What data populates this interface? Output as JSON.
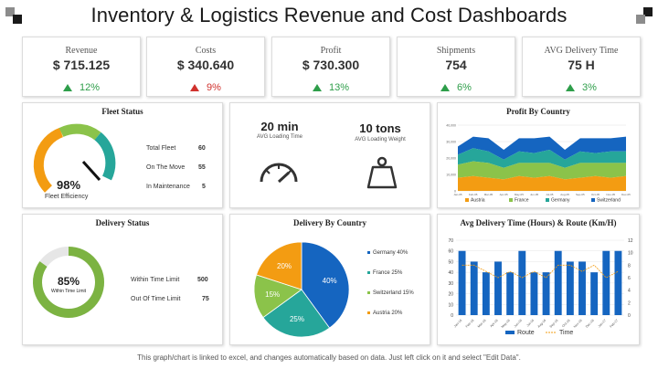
{
  "title": "Inventory & Logistics Revenue and Cost Dashboards",
  "kpis": [
    {
      "label": "Revenue",
      "value": "$ 715.125",
      "delta": "12%",
      "trend": "up"
    },
    {
      "label": "Costs",
      "value": "$ 340.640",
      "delta": "9%",
      "trend": "down"
    },
    {
      "label": "Profit",
      "value": "$ 730.300",
      "delta": "13%",
      "trend": "up"
    },
    {
      "label": "Shipments",
      "value": "754",
      "delta": "6%",
      "trend": "up"
    },
    {
      "label": "AVG Delivery Time",
      "value": "75 H",
      "delta": "3%",
      "trend": "up"
    }
  ],
  "fleet": {
    "title": "Fleet Status",
    "efficiency": "98%",
    "efficiency_label": "Fleet Efficiency",
    "efficiency_value": 0.98,
    "rows": [
      {
        "label": "Total Fleet",
        "value": "60"
      },
      {
        "label": "On The Move",
        "value": "55"
      },
      {
        "label": "In Maintenance",
        "value": "5"
      }
    ]
  },
  "loading": {
    "time_value": "20 min",
    "time_label": "AVG Loading Time",
    "weight_value": "10 tons",
    "weight_label": "AVG Loading Weight"
  },
  "delivery_status": {
    "title": "Delivery Status",
    "percent": "85%",
    "percent_label": "Within Time Limit",
    "fraction": 0.85,
    "rows": [
      {
        "label": "Within Time Limit",
        "value": "500"
      },
      {
        "label": "Out Of Time Limit",
        "value": "75"
      }
    ]
  },
  "colors": {
    "green": "#7cb342",
    "orange": "#f39c12",
    "blue": "#1565c0",
    "teal": "#26a69a",
    "lightgreen": "#8bc34a",
    "lightgray": "#e6e6e6"
  },
  "chart_data": [
    {
      "type": "area",
      "title": "Profit By Country",
      "categories": [
        "Jan-05",
        "Feb-05",
        "Mar-05",
        "Apr-05",
        "May-05",
        "Jun-05",
        "Jul-05",
        "Aug-05",
        "Sep-05",
        "Oct-05",
        "Nov-05",
        "Dec-05"
      ],
      "series": [
        {
          "name": "Austria",
          "values": [
            8,
            9,
            8,
            7,
            9,
            8,
            9,
            7,
            8,
            9,
            8,
            9
          ]
        },
        {
          "name": "France",
          "values": [
            8,
            9,
            9,
            7,
            8,
            9,
            8,
            7,
            9,
            8,
            9,
            8
          ]
        },
        {
          "name": "Germany",
          "values": [
            6,
            8,
            7,
            5,
            7,
            6,
            8,
            5,
            7,
            6,
            7,
            7
          ]
        },
        {
          "name": "Switzerland",
          "values": [
            5,
            7,
            8,
            6,
            8,
            9,
            8,
            6,
            8,
            9,
            8,
            9
          ]
        }
      ],
      "ylim": [
        0,
        40
      ],
      "yticks": [
        "40,000",
        "30,000",
        "20,000",
        "10,000",
        "0"
      ],
      "legend": "bottom"
    },
    {
      "type": "pie",
      "title": "Delivery By Country",
      "slices": [
        {
          "name": "Germany",
          "value": 40,
          "label": "40%",
          "legend": "Germany 40%"
        },
        {
          "name": "France",
          "value": 25,
          "label": "25%",
          "legend": "France 25%"
        },
        {
          "name": "Switzerland",
          "value": 15,
          "label": "15%",
          "legend": "Switzerland 15%"
        },
        {
          "name": "Austria",
          "value": 20,
          "label": "20%",
          "legend": "Austria 20%"
        }
      ],
      "legend": "right"
    },
    {
      "type": "bar",
      "title": "Avg Delivery Time (Hours) & Route (Km/H)",
      "categories": [
        "Jan-16",
        "Feb-16",
        "Mar-16",
        "Apr-16",
        "May-16",
        "Jun-16",
        "Jul-16",
        "Aug-16",
        "Sep-16",
        "Oct-16",
        "Nov-16",
        "Dec-16",
        "Jan-17",
        "Feb-17"
      ],
      "series": [
        {
          "name": "Route",
          "values": [
            60,
            50,
            40,
            50,
            40,
            60,
            40,
            40,
            60,
            50,
            50,
            40,
            60,
            60
          ]
        },
        {
          "name": "Time",
          "values": [
            8,
            8,
            7,
            6,
            7,
            6,
            7,
            6,
            8,
            8,
            7,
            8,
            6,
            7
          ]
        }
      ],
      "ylim": [
        0,
        70
      ],
      "yticks": [
        "70",
        "60",
        "50",
        "40",
        "30",
        "20",
        "10",
        "0"
      ],
      "y2lim": [
        0,
        12
      ],
      "y2ticks": [
        "12",
        "10",
        "8",
        "6",
        "4",
        "2",
        "0"
      ],
      "legend": "bottom"
    }
  ],
  "footer": "This graph/chart is linked to excel, and changes automatically based on data. Just left click on it and select \"Edit Data\"."
}
